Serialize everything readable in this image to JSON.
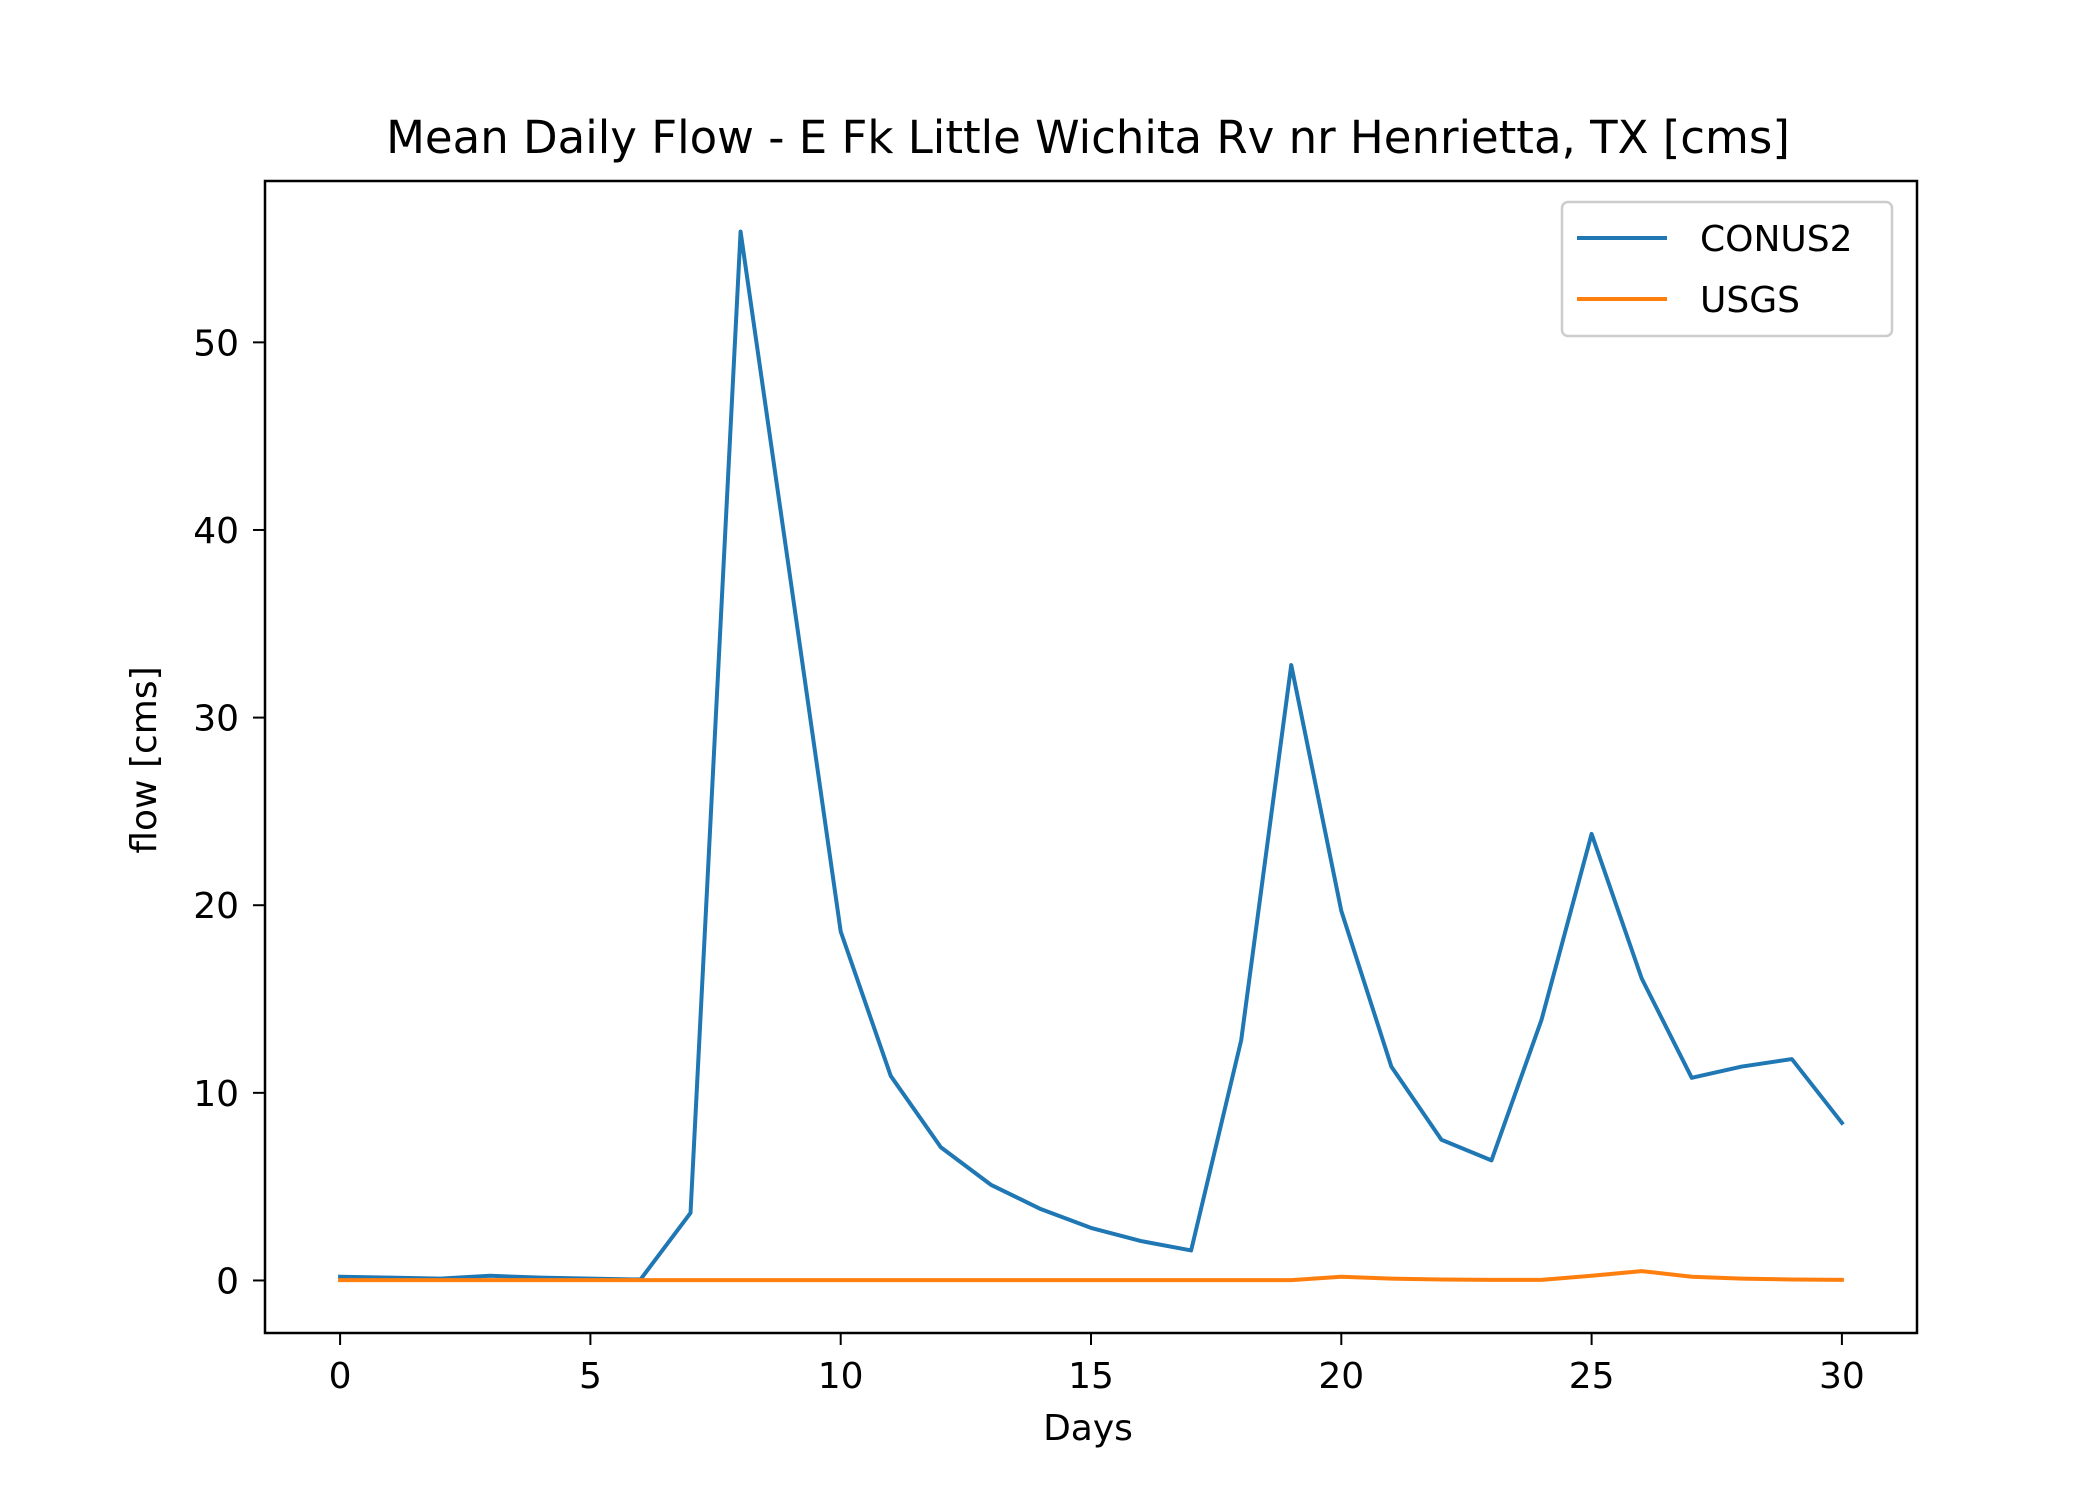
{
  "chart_data": {
    "type": "line",
    "title": "Mean Daily Flow - E Fk Little Wichita Rv nr Henrietta, TX [cms]",
    "xlabel": "Days",
    "ylabel": "flow [cms]",
    "xlim": [
      -1.5,
      31.5
    ],
    "ylim": [
      -2.8,
      58.6
    ],
    "xticks": [
      0,
      5,
      10,
      15,
      20,
      25,
      30
    ],
    "yticks": [
      0,
      10,
      20,
      30,
      40,
      50
    ],
    "grid": false,
    "legend_position": "top-right",
    "x": [
      0,
      1,
      2,
      3,
      4,
      5,
      6,
      7,
      8,
      9,
      10,
      11,
      12,
      13,
      14,
      15,
      16,
      17,
      18,
      19,
      20,
      21,
      22,
      23,
      24,
      25,
      26,
      27,
      28,
      29,
      30
    ],
    "series": [
      {
        "name": "CONUS2",
        "color": "#1f77b4",
        "values": [
          0.2,
          0.15,
          0.1,
          0.25,
          0.15,
          0.1,
          0.05,
          3.6,
          55.9,
          37.3,
          18.6,
          10.9,
          7.1,
          5.1,
          3.8,
          2.8,
          2.1,
          1.6,
          12.8,
          32.8,
          19.7,
          11.4,
          7.5,
          6.4,
          13.9,
          23.8,
          16.1,
          10.8,
          11.4,
          11.8,
          8.4
        ]
      },
      {
        "name": "USGS",
        "color": "#ff7f0e",
        "values": [
          0.02,
          0.02,
          0.02,
          0.02,
          0.02,
          0.02,
          0.02,
          0.02,
          0.02,
          0.02,
          0.02,
          0.02,
          0.02,
          0.02,
          0.02,
          0.02,
          0.02,
          0.02,
          0.02,
          0.02,
          0.2,
          0.1,
          0.05,
          0.03,
          0.03,
          0.25,
          0.5,
          0.2,
          0.1,
          0.05,
          0.03
        ]
      }
    ]
  }
}
